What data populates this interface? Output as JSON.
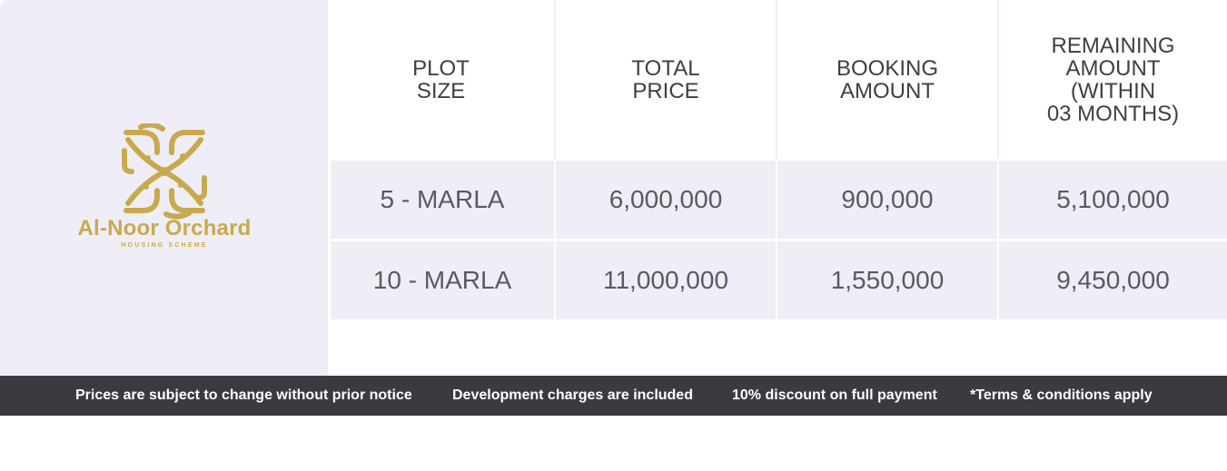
{
  "brand": {
    "name": "Al-Noor Orchard",
    "subtitle": "HOUSING SCHEME",
    "logo_icon": "calligraphy-logo-icon",
    "color": "#c9a94e"
  },
  "table": {
    "headers": [
      [
        "PLOT",
        "SIZE"
      ],
      [
        "TOTAL",
        "PRICE"
      ],
      [
        "BOOKING",
        "AMOUNT"
      ],
      [
        "REMAINING",
        "AMOUNT",
        "(WITHIN",
        "03 MONTHS)"
      ]
    ],
    "rows": [
      [
        "5 - MARLA",
        "6,000,000",
        "900,000",
        "5,100,000"
      ],
      [
        "10 - MARLA",
        "11,000,000",
        "1,550,000",
        "9,450,000"
      ]
    ]
  },
  "footer": {
    "notes": [
      "Prices are subject to change without prior notice",
      "Development charges are included",
      "10% discount on full payment",
      "*Terms & conditions apply"
    ]
  },
  "colors": {
    "panel": "#efeef6",
    "footer": "#3a3b40",
    "text": "#555558"
  }
}
